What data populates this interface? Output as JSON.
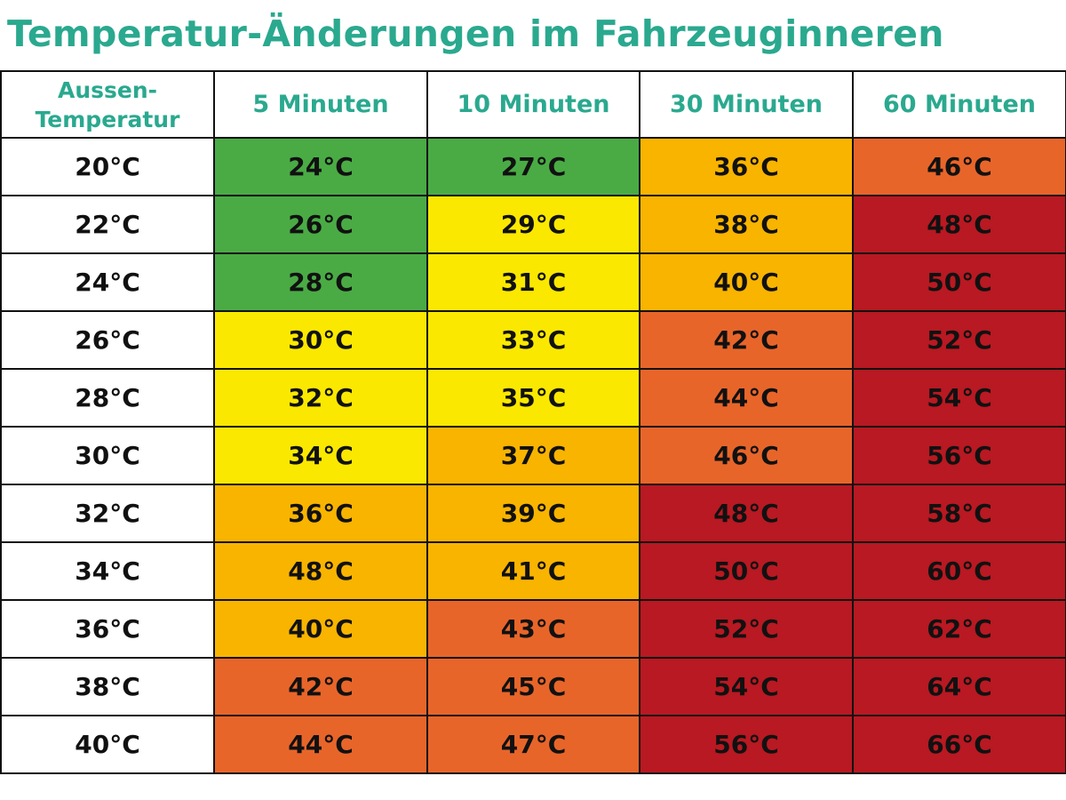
{
  "title": "Temperatur-Änderungen im Fahrzeuginneren",
  "colors": {
    "title": "#2aa98f",
    "green": "#4aab45",
    "yellow": "#fbe800",
    "amber": "#f9b400",
    "orange": "#e8652a",
    "red": "#b81922"
  },
  "chart_data": {
    "type": "table",
    "title": "Temperatur-Änderungen im Fahrzeuginneren",
    "corner_header": [
      "Aussen-",
      "Temperatur"
    ],
    "columns": [
      "5 Minuten",
      "10 Minuten",
      "30 Minuten",
      "60 Minuten"
    ],
    "rows": [
      {
        "outside": "20°C",
        "cells": [
          {
            "value": "24°C",
            "color": "green"
          },
          {
            "value": "27°C",
            "color": "green"
          },
          {
            "value": "36°C",
            "color": "amber"
          },
          {
            "value": "46°C",
            "color": "orange"
          }
        ]
      },
      {
        "outside": "22°C",
        "cells": [
          {
            "value": "26°C",
            "color": "green"
          },
          {
            "value": "29°C",
            "color": "yellow"
          },
          {
            "value": "38°C",
            "color": "amber"
          },
          {
            "value": "48°C",
            "color": "red"
          }
        ]
      },
      {
        "outside": "24°C",
        "cells": [
          {
            "value": "28°C",
            "color": "green"
          },
          {
            "value": "31°C",
            "color": "yellow"
          },
          {
            "value": "40°C",
            "color": "amber"
          },
          {
            "value": "50°C",
            "color": "red"
          }
        ]
      },
      {
        "outside": "26°C",
        "cells": [
          {
            "value": "30°C",
            "color": "yellow"
          },
          {
            "value": "33°C",
            "color": "yellow"
          },
          {
            "value": "42°C",
            "color": "orange"
          },
          {
            "value": "52°C",
            "color": "red"
          }
        ]
      },
      {
        "outside": "28°C",
        "cells": [
          {
            "value": "32°C",
            "color": "yellow"
          },
          {
            "value": "35°C",
            "color": "yellow"
          },
          {
            "value": "44°C",
            "color": "orange"
          },
          {
            "value": "54°C",
            "color": "red"
          }
        ]
      },
      {
        "outside": "30°C",
        "cells": [
          {
            "value": "34°C",
            "color": "yellow"
          },
          {
            "value": "37°C",
            "color": "amber"
          },
          {
            "value": "46°C",
            "color": "orange"
          },
          {
            "value": "56°C",
            "color": "red"
          }
        ]
      },
      {
        "outside": "32°C",
        "cells": [
          {
            "value": "36°C",
            "color": "amber"
          },
          {
            "value": "39°C",
            "color": "amber"
          },
          {
            "value": "48°C",
            "color": "red"
          },
          {
            "value": "58°C",
            "color": "red"
          }
        ]
      },
      {
        "outside": "34°C",
        "cells": [
          {
            "value": "48°C",
            "color": "amber"
          },
          {
            "value": "41°C",
            "color": "amber"
          },
          {
            "value": "50°C",
            "color": "red"
          },
          {
            "value": "60°C",
            "color": "red"
          }
        ]
      },
      {
        "outside": "36°C",
        "cells": [
          {
            "value": "40°C",
            "color": "amber"
          },
          {
            "value": "43°C",
            "color": "orange"
          },
          {
            "value": "52°C",
            "color": "red"
          },
          {
            "value": "62°C",
            "color": "red"
          }
        ]
      },
      {
        "outside": "38°C",
        "cells": [
          {
            "value": "42°C",
            "color": "orange"
          },
          {
            "value": "45°C",
            "color": "orange"
          },
          {
            "value": "54°C",
            "color": "red"
          },
          {
            "value": "64°C",
            "color": "red"
          }
        ]
      },
      {
        "outside": "40°C",
        "cells": [
          {
            "value": "44°C",
            "color": "orange"
          },
          {
            "value": "47°C",
            "color": "orange"
          },
          {
            "value": "56°C",
            "color": "red"
          },
          {
            "value": "66°C",
            "color": "red"
          }
        ]
      }
    ]
  }
}
